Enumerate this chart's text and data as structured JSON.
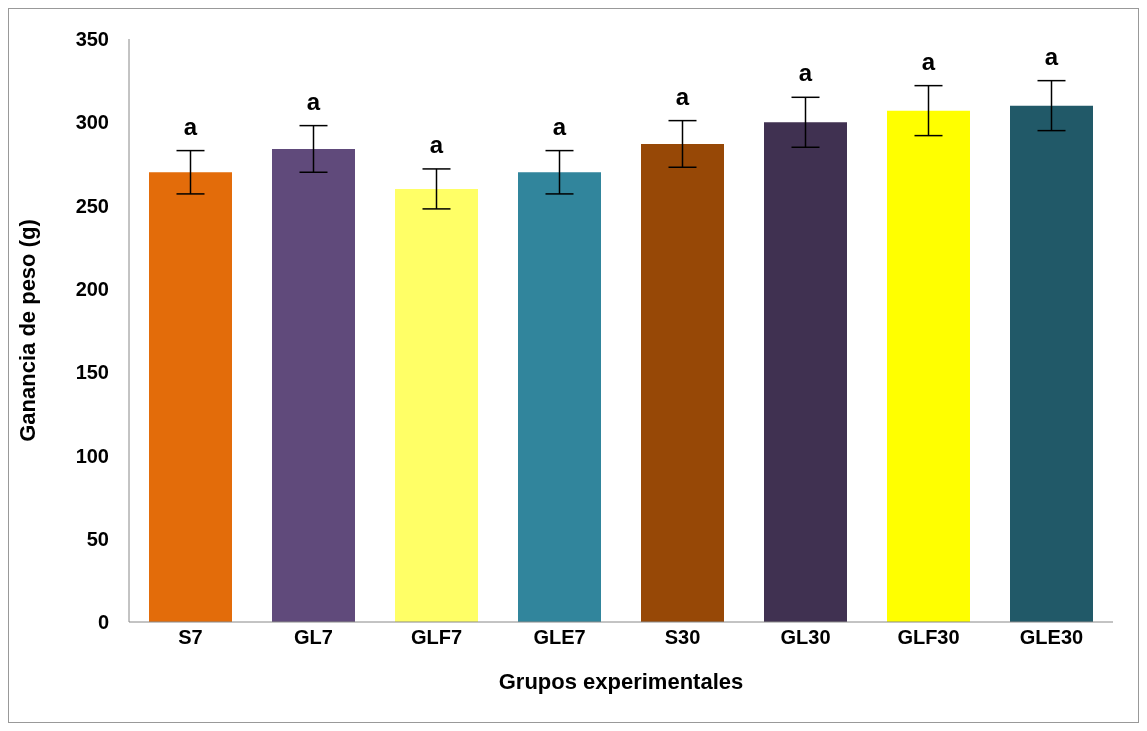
{
  "chart_data": {
    "type": "bar",
    "xlabel": "Grupos experimentales",
    "ylabel": "Ganancia de peso (g)",
    "categories": [
      "S7",
      "GL7",
      "GLF7",
      "GLE7",
      "S30",
      "GL30",
      "GLF30",
      "GLE30"
    ],
    "values": [
      270,
      284,
      260,
      270,
      287,
      300,
      307,
      310
    ],
    "errors": [
      13,
      14,
      12,
      13,
      14,
      15,
      15,
      15
    ],
    "colors": [
      "#e36c0a",
      "#604a7b",
      "#ffff66",
      "#31859c",
      "#974806",
      "#403151",
      "#ffff00",
      "#215968"
    ],
    "ylim": [
      0,
      350
    ],
    "yticks": [
      0,
      50,
      100,
      150,
      200,
      250,
      300,
      350
    ],
    "grid": false,
    "annotations": [
      "a",
      "a",
      "a",
      "a",
      "a",
      "a",
      "a",
      "a"
    ]
  }
}
